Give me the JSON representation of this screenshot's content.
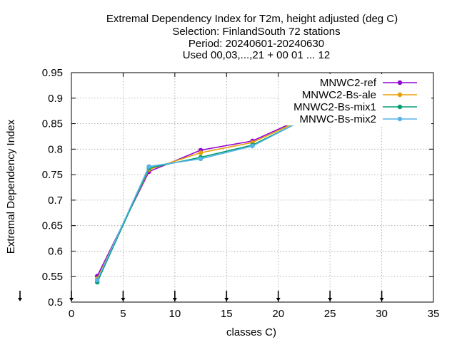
{
  "chart_data": {
    "type": "line",
    "title": [
      "Extremal Dependency Index  for T2m, height adjusted (deg C)",
      "Selection: FinlandSouth     72 stations",
      "Period: 20240601-20240630",
      "Used 00,03,...,21 + 00 01 ... 12"
    ],
    "xlabel": "classes C)",
    "ylabel": "Extremal Dependency Index",
    "xlim": [
      0,
      35
    ],
    "ylim": [
      0.5,
      0.95
    ],
    "xticks": [
      "0",
      "5",
      "10",
      "15",
      "20",
      "25",
      "30",
      "35"
    ],
    "yticks": [
      "0.5",
      "0.55",
      "0.6",
      "0.65",
      "0.7",
      "0.75",
      "0.8",
      "0.85",
      "0.9",
      "0.95"
    ],
    "grid": true,
    "legend_position": "top-right",
    "series": [
      {
        "name": "MNWC2-ref",
        "color": "#9400d3",
        "x": [
          2.5,
          7.5,
          12.5,
          17.5,
          22.5,
          27.5,
          32.5
        ],
        "y": [
          0.551,
          0.756,
          0.798,
          0.816,
          0.862,
          0.91,
          0.89
        ]
      },
      {
        "name": "MNWC2-Bs-ale",
        "color": "#e69f00",
        "x": [
          2.5,
          7.5,
          12.5,
          17.5,
          22.5,
          27.5,
          32.5
        ],
        "y": [
          0.546,
          0.76,
          0.793,
          0.813,
          0.86,
          0.907,
          0.898
        ]
      },
      {
        "name": "MNWC2-Bs-mix1",
        "color": "#009e73",
        "x": [
          2.5,
          7.5,
          12.5,
          17.5,
          22.5,
          27.5,
          32.5
        ],
        "y": [
          0.539,
          0.763,
          0.784,
          0.808,
          0.858,
          0.911,
          0.933
        ]
      },
      {
        "name": "MNWC-Bs-mix2",
        "color": "#56b4e9",
        "x": [
          2.5,
          7.5,
          12.5,
          17.5,
          22.5,
          27.5,
          32.5
        ],
        "y": [
          0.543,
          0.766,
          0.781,
          0.806,
          0.858,
          0.912,
          0.895
        ]
      }
    ]
  }
}
